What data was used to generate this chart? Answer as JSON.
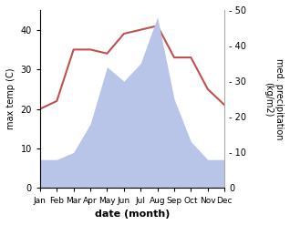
{
  "months": [
    "Jan",
    "Feb",
    "Mar",
    "Apr",
    "May",
    "Jun",
    "Jul",
    "Aug",
    "Sep",
    "Oct",
    "Nov",
    "Dec"
  ],
  "temperature": [
    20,
    22,
    35,
    35,
    34,
    39,
    40,
    41,
    33,
    33,
    25,
    21
  ],
  "precipitation": [
    8,
    8,
    10,
    18,
    34,
    30,
    35,
    48,
    25,
    13,
    8,
    8
  ],
  "temp_color": "#c0504d",
  "precip_fill_color": "#b8c4e8",
  "ylabel_left": "max temp (C)",
  "ylabel_right": "med. precipitation\n(kg/m2)",
  "xlabel": "date (month)",
  "ylim_left": [
    0,
    45
  ],
  "ylim_right": [
    0,
    50
  ],
  "yticks_left": [
    0,
    10,
    20,
    30,
    40
  ],
  "yticks_right": [
    0,
    10,
    20,
    30,
    40,
    50
  ],
  "bg_color": "#ffffff",
  "plot_bg_color": "#ffffff"
}
